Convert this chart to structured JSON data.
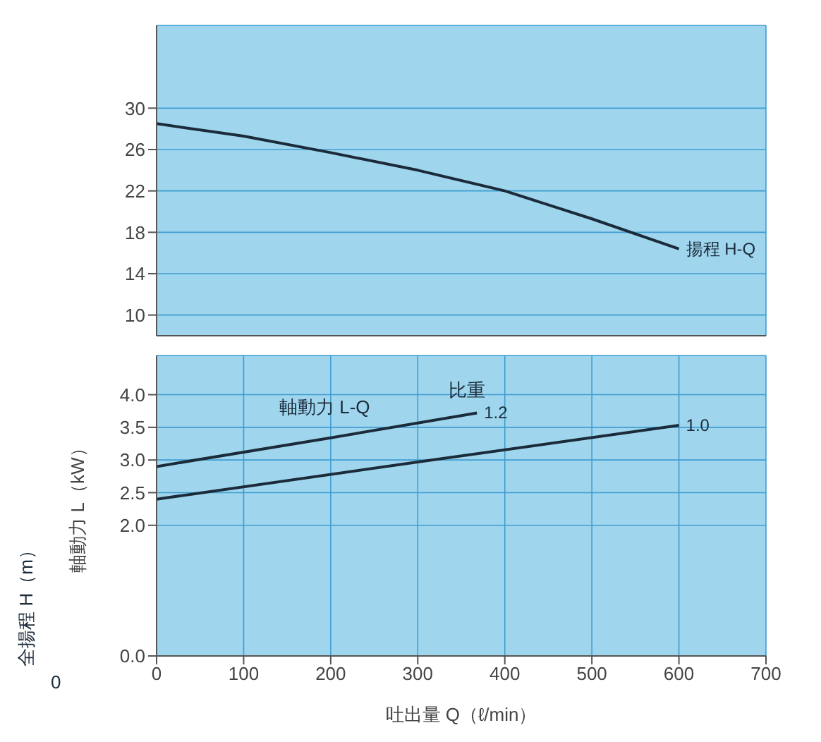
{
  "chart_data": [
    {
      "type": "line",
      "series": [
        {
          "name": "揚程 H-Q",
          "color": "#1c2b3a",
          "x": [
            0,
            100,
            200,
            300,
            400,
            500,
            600
          ],
          "values": [
            28.5,
            27.3,
            25.7,
            24.0,
            22.0,
            19.3,
            16.4
          ]
        }
      ],
      "xlim": [
        0,
        700
      ],
      "xticks": [
        0,
        100,
        200,
        300,
        400,
        500,
        600,
        700
      ],
      "ylim": [
        8,
        38
      ],
      "yticks": [
        10,
        14,
        18,
        22,
        26,
        30
      ],
      "grid": true,
      "marker": "none",
      "line_style": "solid",
      "tick_labels": "y"
    },
    {
      "type": "line",
      "xlabel": "吐出量 Q（ℓ/min）",
      "ylabel": "軸動力 L（kW）",
      "annotations": [
        "軸動力 L-Q",
        "比重",
        "全揚程 H（m）",
        "0"
      ],
      "series": [
        {
          "name": "1.2",
          "color": "#1c2b3a",
          "x": [
            0,
            200,
            368
          ],
          "values": [
            2.9,
            3.34,
            3.72
          ]
        },
        {
          "name": "1.0",
          "color": "#1c2b3a",
          "x": [
            0,
            300,
            600
          ],
          "values": [
            2.4,
            2.97,
            3.53
          ]
        }
      ],
      "xlim": [
        0,
        700
      ],
      "xticks": [
        0,
        100,
        200,
        300,
        400,
        500,
        600,
        700
      ],
      "ylim": [
        0,
        4.6
      ],
      "yticks": [
        {
          "value": 0,
          "label": "0.0"
        },
        {
          "value": 2,
          "label": "2.0"
        },
        2.5,
        {
          "value": 3,
          "label": "3.0"
        },
        3.5,
        {
          "value": 4,
          "label": "4.0"
        }
      ],
      "grid": true,
      "marker": "none",
      "line_style": "solid"
    }
  ]
}
